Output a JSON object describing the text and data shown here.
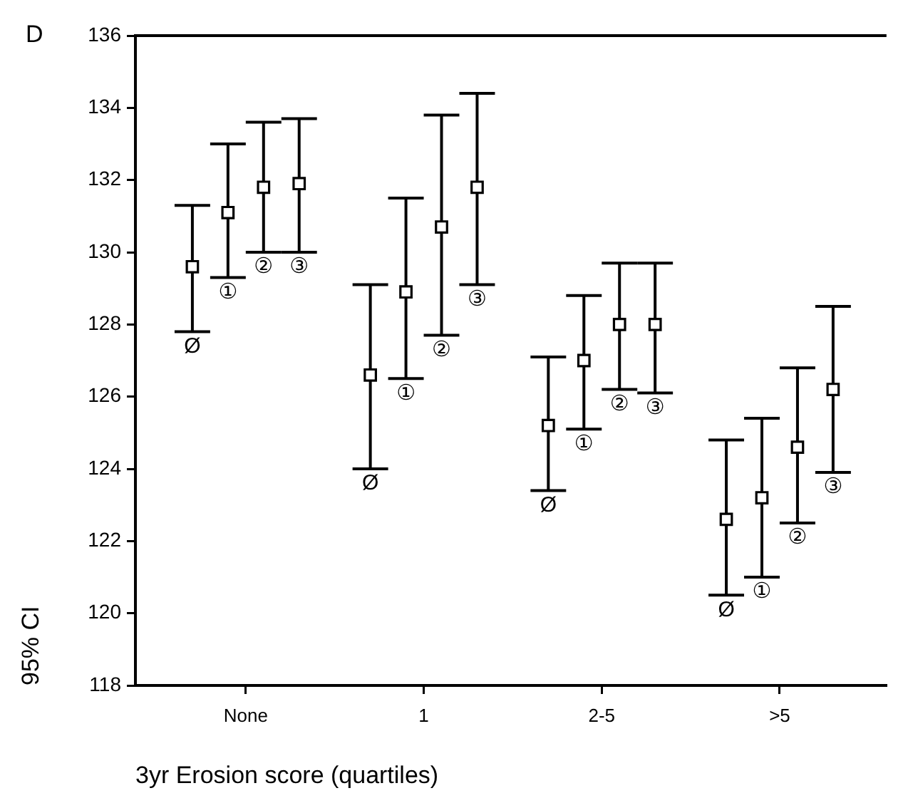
{
  "chart_data": {
    "type": "scatter",
    "xlabel": "3yr Erosion score (quartiles)",
    "ylabel": "95% CI",
    "annotations": [
      "D"
    ],
    "categories": [
      "None",
      "1",
      "2-5",
      ">5"
    ],
    "series": [
      {
        "name": "Ø",
        "color": "#000000",
        "values": [
          129.6,
          126.6,
          125.2,
          122.6
        ],
        "errors": [
          [
            127.8,
            131.3
          ],
          [
            124.0,
            129.1
          ],
          [
            123.4,
            127.1
          ],
          [
            120.5,
            124.8
          ]
        ]
      },
      {
        "name": "①",
        "color": "#000000",
        "values": [
          131.1,
          128.9,
          127.0,
          123.2
        ],
        "errors": [
          [
            129.3,
            133.0
          ],
          [
            126.5,
            131.5
          ],
          [
            125.1,
            128.8
          ],
          [
            121.0,
            125.4
          ]
        ]
      },
      {
        "name": "②",
        "color": "#000000",
        "values": [
          131.8,
          130.7,
          128.0,
          124.6
        ],
        "errors": [
          [
            130.0,
            133.6
          ],
          [
            127.7,
            133.8
          ],
          [
            126.2,
            129.7
          ],
          [
            122.5,
            126.8
          ]
        ]
      },
      {
        "name": "③",
        "color": "#000000",
        "values": [
          131.9,
          131.8,
          128.0,
          126.2
        ],
        "errors": [
          [
            130.0,
            133.7
          ],
          [
            129.1,
            134.4
          ],
          [
            126.1,
            129.7
          ],
          [
            123.9,
            128.5
          ]
        ]
      }
    ],
    "marker": "square",
    "ylim": [
      118,
      136
    ],
    "yticks": [
      118,
      120,
      122,
      124,
      126,
      128,
      130,
      132,
      134,
      136
    ],
    "grid": false
  }
}
